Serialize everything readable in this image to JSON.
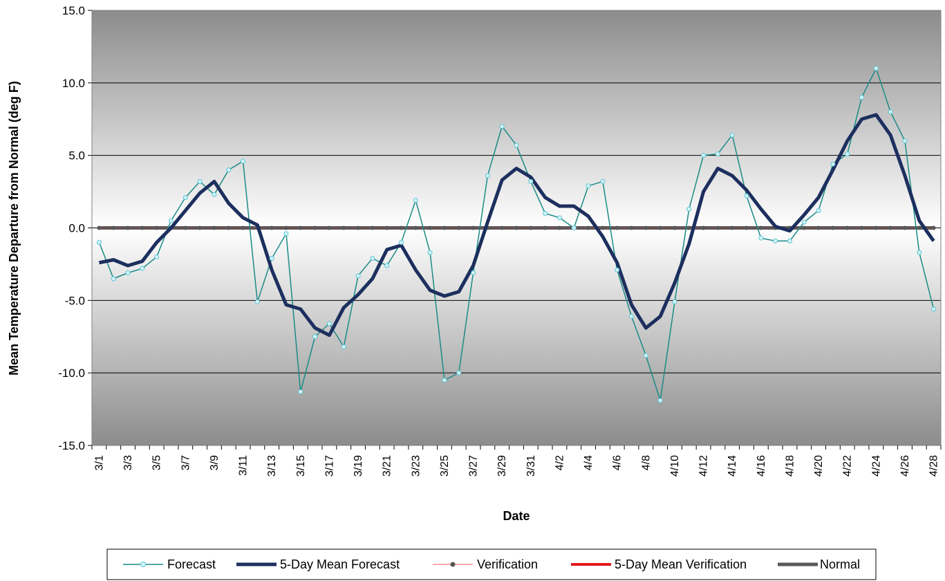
{
  "chart_data": {
    "type": "line",
    "title": "",
    "xlabel": "Date",
    "ylabel": "Mean Temperature Departure from Normal (deg F)",
    "ylim": [
      -15,
      15
    ],
    "yticks": [
      "-15.0",
      "-10.0",
      "-5.0",
      "0.0",
      "5.0",
      "10.0",
      "15.0"
    ],
    "ytick_values": [
      -15,
      -10,
      -5,
      0,
      5,
      10,
      15
    ],
    "grid": "horizontal",
    "background": "gradient grey-white-grey",
    "legend_position": "bottom",
    "categories": [
      "3/1",
      "3/2",
      "3/3",
      "3/4",
      "3/5",
      "3/6",
      "3/7",
      "3/8",
      "3/9",
      "3/10",
      "3/11",
      "3/12",
      "3/13",
      "3/14",
      "3/15",
      "3/16",
      "3/17",
      "3/18",
      "3/19",
      "3/20",
      "3/21",
      "3/22",
      "3/23",
      "3/24",
      "3/25",
      "3/26",
      "3/27",
      "3/28",
      "3/29",
      "3/30",
      "3/31",
      "4/1",
      "4/2",
      "4/3",
      "4/4",
      "4/5",
      "4/6",
      "4/7",
      "4/8",
      "4/9",
      "4/10",
      "4/11",
      "4/12",
      "4/13",
      "4/14",
      "4/15",
      "4/16",
      "4/17",
      "4/18",
      "4/19",
      "4/20",
      "4/21",
      "4/22",
      "4/23",
      "4/24",
      "4/25",
      "4/26",
      "4/27",
      "4/28"
    ],
    "xtick_labels": [
      "3/1",
      "3/3",
      "3/5",
      "3/7",
      "3/9",
      "3/11",
      "3/13",
      "3/15",
      "3/17",
      "3/19",
      "3/21",
      "3/23",
      "3/25",
      "3/27",
      "3/29",
      "3/31",
      "4/2",
      "4/4",
      "4/6",
      "4/8",
      "4/10",
      "4/12",
      "4/14",
      "4/16",
      "4/18",
      "4/20",
      "4/22",
      "4/24",
      "4/26",
      "4/28"
    ],
    "series": [
      {
        "name": "Forecast",
        "color": "#1a8a86",
        "marker": "circle-open",
        "values": [
          -1.0,
          -3.5,
          -3.1,
          -2.8,
          -2.0,
          0.5,
          2.1,
          3.2,
          2.3,
          4.0,
          4.6,
          -5.1,
          -2.1,
          -0.4,
          -11.3,
          -7.5,
          -6.6,
          -8.2,
          -3.3,
          -2.1,
          -2.6,
          -1.0,
          1.9,
          -1.7,
          -10.5,
          -10.0,
          -3.1,
          3.6,
          7.0,
          5.7,
          3.2,
          1.0,
          0.7,
          0.0,
          2.9,
          3.2,
          -2.9,
          -6.1,
          -8.8,
          -11.9,
          -5.1,
          1.3,
          5.0,
          5.1,
          6.4,
          2.2,
          -0.7,
          -0.9,
          -0.9,
          0.4,
          1.2,
          4.4,
          5.1,
          9.0,
          11.0,
          8.0,
          6.0,
          -1.7,
          -5.6
        ]
      },
      {
        "name": "5-Day Mean Forecast",
        "color": "#1c2f5e",
        "values": [
          -2.4,
          -2.2,
          -2.6,
          -2.3,
          -1.0,
          0.0,
          1.2,
          2.4,
          3.2,
          1.7,
          0.7,
          0.2,
          -2.9,
          -5.3,
          -5.6,
          -6.9,
          -7.4,
          -5.5,
          -4.6,
          -3.5,
          -1.5,
          -1.2,
          -2.9,
          -4.3,
          -4.7,
          -4.4,
          -2.6,
          0.4,
          3.3,
          4.1,
          3.5,
          2.1,
          1.5,
          1.5,
          0.8,
          -0.6,
          -2.4,
          -5.3,
          -6.9,
          -6.1,
          -3.8,
          -1.1,
          2.5,
          4.1,
          3.6,
          2.6,
          1.3,
          0.1,
          -0.2,
          0.9,
          2.1,
          4.0,
          6.0,
          7.5,
          7.8,
          6.4,
          3.6,
          0.5,
          -0.9
        ]
      },
      {
        "name": "Verification",
        "color": "#ff8c8c",
        "marker_color": "#555555",
        "marker": "circle",
        "values": [
          0,
          0,
          0,
          0,
          0,
          0,
          0,
          0,
          0,
          0,
          0,
          0,
          0,
          0,
          0,
          0,
          0,
          0,
          0,
          0,
          0,
          0,
          0,
          0,
          0,
          0,
          0,
          0,
          0,
          0,
          0,
          0,
          0,
          0,
          0,
          0,
          0,
          0,
          0,
          0,
          0,
          0,
          0,
          0,
          0,
          0,
          0,
          0,
          0,
          0,
          0,
          0,
          0,
          0,
          0,
          0,
          0,
          0,
          0
        ]
      },
      {
        "name": "5-Day Mean Verification",
        "color": "#e31a1c",
        "values": [
          0,
          0,
          0,
          0,
          0,
          0,
          0,
          0,
          0,
          0,
          0,
          0,
          0,
          0,
          0,
          0,
          0,
          0,
          0,
          0,
          0,
          0,
          0,
          0,
          0,
          0,
          0,
          0,
          0,
          0,
          0,
          0,
          0,
          0,
          0,
          0,
          0,
          0,
          0,
          0,
          0,
          0,
          0,
          0,
          0,
          0,
          0,
          0,
          0,
          0,
          0,
          0,
          0,
          0,
          0,
          0,
          0,
          0,
          0
        ]
      },
      {
        "name": "Normal",
        "color": "#595959",
        "values": [
          0,
          0,
          0,
          0,
          0,
          0,
          0,
          0,
          0,
          0,
          0,
          0,
          0,
          0,
          0,
          0,
          0,
          0,
          0,
          0,
          0,
          0,
          0,
          0,
          0,
          0,
          0,
          0,
          0,
          0,
          0,
          0,
          0,
          0,
          0,
          0,
          0,
          0,
          0,
          0,
          0,
          0,
          0,
          0,
          0,
          0,
          0,
          0,
          0,
          0,
          0,
          0,
          0,
          0,
          0,
          0,
          0,
          0,
          0
        ]
      }
    ],
    "legend": [
      "Forecast",
      "5-Day Mean Forecast",
      "Verification",
      "5-Day Mean Verification",
      "Normal"
    ]
  }
}
